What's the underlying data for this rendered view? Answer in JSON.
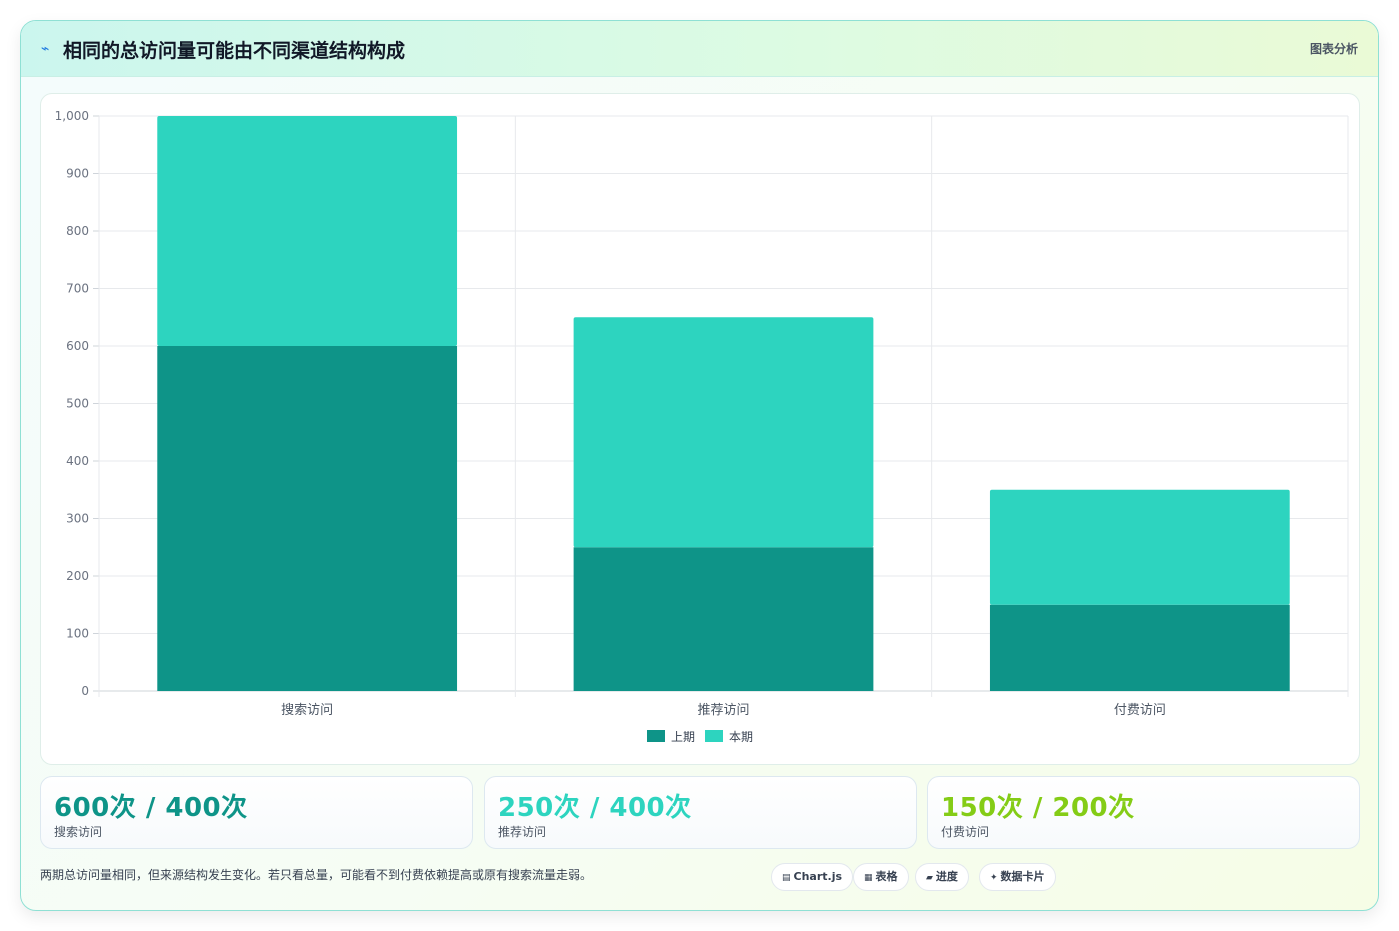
{
  "header": {
    "title_icon": "⌁",
    "title": "相同的总访问量可能由不同渠道结构构成",
    "right_label": "图表分析"
  },
  "chart_data": {
    "type": "bar",
    "stacked": true,
    "categories": [
      "搜索访问",
      "推荐访问",
      "付费访问"
    ],
    "series": [
      {
        "name": "上期",
        "values": [
          600,
          250,
          150
        ],
        "color": "#0e9488"
      },
      {
        "name": "本期",
        "values": [
          400,
          400,
          200
        ],
        "color": "#2dd4bf"
      }
    ],
    "ylim": [
      0,
      1000
    ],
    "yticks": [
      "0",
      "100",
      "200",
      "300",
      "400",
      "500",
      "600",
      "700",
      "800",
      "900",
      "1,000"
    ],
    "grid": true,
    "legend_position": "bottom"
  },
  "stats": [
    {
      "value": "600次 / 400次",
      "label": "搜索访问",
      "color": "#0e9488"
    },
    {
      "value": "250次 / 400次",
      "label": "推荐访问",
      "color": "#2dd4bf"
    },
    {
      "value": "150次 / 200次",
      "label": "付费访问",
      "color": "#84cc16"
    }
  ],
  "note": "两期总访问量相同，但来源结构发生变化。若只看总量，可能看不到付费依赖提高或原有搜索流量走弱。",
  "tags": [
    {
      "icon": "▤",
      "label": "Chart.js"
    },
    {
      "icon": "▦",
      "label": "表格"
    },
    {
      "icon": "▰",
      "label": "进度"
    },
    {
      "icon": "✦",
      "label": "数据卡片"
    }
  ]
}
